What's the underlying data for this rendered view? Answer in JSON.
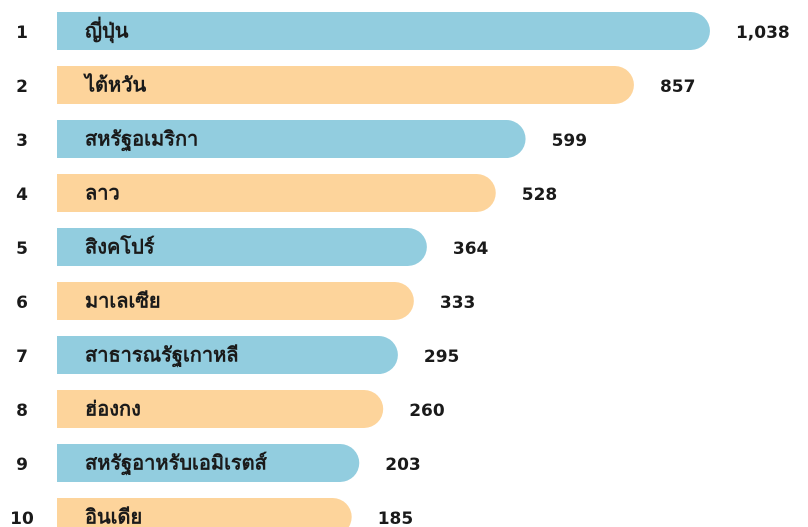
{
  "chart_data": {
    "type": "bar",
    "ranks": [
      1,
      2,
      3,
      4,
      5,
      6,
      7,
      8,
      9,
      10
    ],
    "categories": [
      "ญี่ปุ่น",
      "ไต้หวัน",
      "สหรัฐอเมริกา",
      "ลาว",
      "สิงคโปร์",
      "มาเลเซีย",
      "สาธารณรัฐเกาหลี",
      "ฮ่องกง",
      "สหรัฐอาหรับเอมิเรตส์",
      "อินเดีย"
    ],
    "values": [
      1038,
      857,
      599,
      528,
      364,
      333,
      295,
      260,
      203,
      185
    ],
    "value_labels": [
      "1,038",
      "857",
      "599",
      "528",
      "364",
      "333",
      "295",
      "260",
      "203",
      "185"
    ],
    "colors": [
      "#92cddf",
      "#fdd49b",
      "#92cddf",
      "#fdd49b",
      "#92cddf",
      "#fdd49b",
      "#92cddf",
      "#fdd49b",
      "#92cddf",
      "#fdd49b"
    ]
  }
}
